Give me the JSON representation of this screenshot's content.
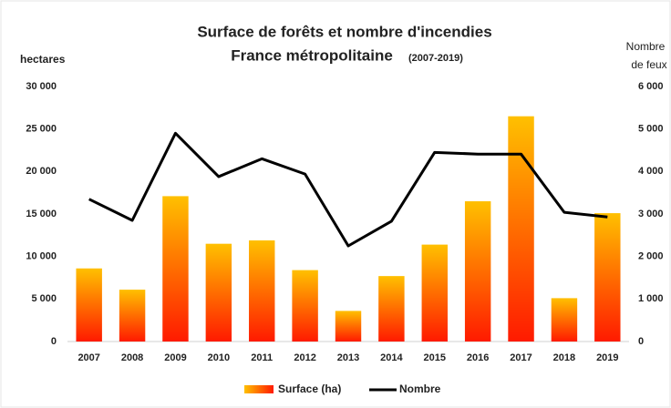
{
  "chart_data": {
    "type": "bar_line",
    "title": "Surface de forêts et nombre d'incendies",
    "subtitle": "France métropolitaine",
    "subtitle_note": "(2007-2019)",
    "ylabel": "hectares",
    "y2label": [
      "Nombre",
      "de feux"
    ],
    "categories": [
      "2007",
      "2008",
      "2009",
      "2010",
      "2011",
      "2012",
      "2013",
      "2014",
      "2015",
      "2016",
      "2017",
      "2018",
      "2019"
    ],
    "series": [
      {
        "name": "Surface (ha)",
        "type": "bar",
        "color": [
          "#ffc000",
          "#ff1a00"
        ],
        "values": [
          8600,
          6100,
          17100,
          11500,
          11900,
          8400,
          3600,
          7700,
          11400,
          16500,
          26500,
          5100,
          15100
        ]
      },
      {
        "name": "Nombre",
        "type": "line",
        "axis": "y2",
        "color": "#000000",
        "values": [
          3350,
          2850,
          4900,
          3880,
          4300,
          3940,
          2250,
          2830,
          4450,
          4410,
          4410,
          3040,
          2930
        ]
      }
    ],
    "ylim": [
      0,
      30000
    ],
    "yticks": [
      0,
      {
        "value": 5000,
        "label": "5 000"
      },
      {
        "value": 10000,
        "label": "10 000"
      },
      {
        "value": 15000,
        "label": "15 000"
      },
      {
        "value": 20000,
        "label": "20 000"
      },
      {
        "value": 25000,
        "label": "25 000"
      },
      {
        "value": 30000,
        "label": "30 000"
      }
    ],
    "y2lim": [
      0,
      6000
    ],
    "y2ticks": [
      0,
      {
        "value": 1000,
        "label": "1 000"
      },
      {
        "value": 2000,
        "label": "2 000"
      },
      {
        "value": 3000,
        "label": "3 000"
      },
      {
        "value": 4000,
        "label": "4 000"
      },
      {
        "value": 5000,
        "label": "5 000"
      },
      {
        "value": 6000,
        "label": "6 000"
      }
    ],
    "grid": false,
    "legend": "bottom"
  }
}
